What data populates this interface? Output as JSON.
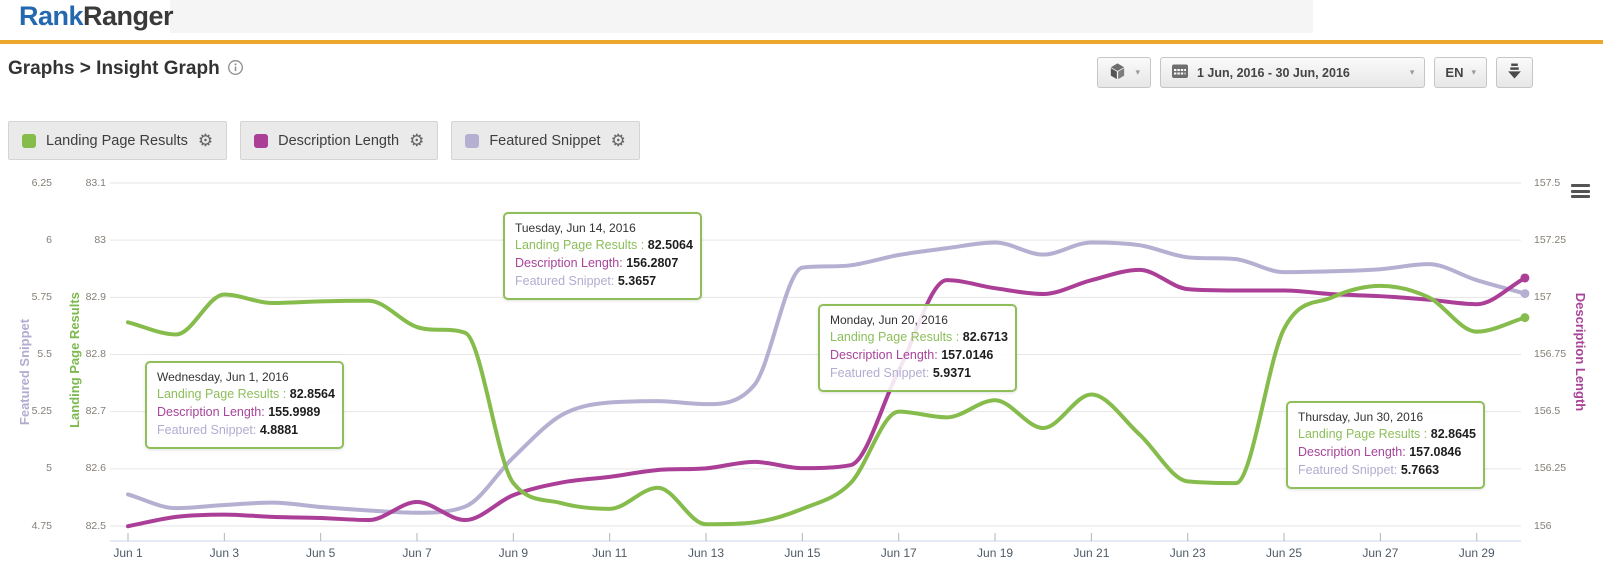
{
  "header": {
    "logo_part1": "Rank",
    "logo_part2": "Ranger"
  },
  "toolbar": {
    "breadcrumb": "Graphs > Insight Graph",
    "date_range": "1 Jun, 2016 - 30 Jun, 2016",
    "language": "EN"
  },
  "legend": {
    "items": [
      {
        "label": "Landing Page Results",
        "color": "#86BC4C"
      },
      {
        "label": "Description Length",
        "color": "#AB3E96"
      },
      {
        "label": "Featured Snippet",
        "color": "#B5AFD1"
      }
    ]
  },
  "tooltip_labels": {
    "landing_page_results": "Landing Page Results :",
    "description_length": "Description Length:",
    "featured_snippet": "Featured Snippet:"
  },
  "tooltips": [
    {
      "date": "Wednesday, Jun 1, 2016",
      "landing_page_results": "82.8564",
      "description_length": "155.9989",
      "featured_snippet": "4.8881"
    },
    {
      "date": "Tuesday, Jun 14, 2016",
      "landing_page_results": "82.5064",
      "description_length": "156.2807",
      "featured_snippet": "5.3657"
    },
    {
      "date": "Monday, Jun 20, 2016",
      "landing_page_results": "82.6713",
      "description_length": "157.0146",
      "featured_snippet": "5.9371"
    },
    {
      "date": "Thursday, Jun 30, 2016",
      "landing_page_results": "82.8645",
      "description_length": "157.0846",
      "featured_snippet": "5.7663"
    }
  ],
  "chart_data": {
    "type": "line",
    "x_unit": "day of June 2016, days 1-30",
    "x_tick_labels": [
      {
        "day": 1,
        "label": "Jun 1"
      },
      {
        "day": 3,
        "label": "Jun 3"
      },
      {
        "day": 5,
        "label": "Jun 5"
      },
      {
        "day": 7,
        "label": "Jun 7"
      },
      {
        "day": 9,
        "label": "Jun 9"
      },
      {
        "day": 11,
        "label": "Jun 11"
      },
      {
        "day": 13,
        "label": "Jun 13"
      },
      {
        "day": 15,
        "label": "Jun 15"
      },
      {
        "day": 17,
        "label": "Jun 17"
      },
      {
        "day": 19,
        "label": "Jun 19"
      },
      {
        "day": 21,
        "label": "Jun 21"
      },
      {
        "day": 23,
        "label": "Jun 23"
      },
      {
        "day": 25,
        "label": "Jun 25"
      },
      {
        "day": 27,
        "label": "Jun 27"
      },
      {
        "day": 29,
        "label": "Jun 29"
      }
    ],
    "axes": {
      "featured_snippet": {
        "title": "Featured Snippet",
        "side": "left-outer",
        "min": 4.75,
        "max": 6.25,
        "ticks": [
          "6.25",
          "6",
          "5.75",
          "5.5",
          "5.25",
          "5",
          "4.75"
        ]
      },
      "landing_page_results": {
        "title": "Landing Page Results",
        "side": "left-inner",
        "min": 82.5,
        "max": 83.1,
        "ticks": [
          "83.1",
          "83",
          "82.9",
          "82.8",
          "82.7",
          "82.6",
          "82.5"
        ]
      },
      "description_length": {
        "title": "Description Length",
        "side": "right",
        "min": 156.0,
        "max": 157.5,
        "ticks": [
          "157.5",
          "157.25",
          "157",
          "156.75",
          "156.5",
          "156.25",
          "156"
        ]
      }
    },
    "grid": true,
    "legend_position": "top-left buttons",
    "series": [
      {
        "name": "Landing Page Results",
        "axis": "landing_page_results",
        "color": "#86BC4C",
        "values": [
          82.8564,
          82.835,
          82.905,
          82.89,
          82.893,
          82.894,
          82.848,
          82.838,
          82.575,
          82.54,
          82.53,
          82.567,
          82.503,
          82.5064,
          82.53,
          82.575,
          82.7,
          82.69,
          82.72,
          82.6713,
          82.73,
          82.66,
          82.578,
          82.575,
          82.845,
          82.9,
          82.92,
          82.9,
          82.84,
          82.8645
        ]
      },
      {
        "name": "Description Length",
        "axis": "description_length",
        "color": "#AB3E96",
        "values": [
          155.9989,
          156.04,
          156.05,
          156.04,
          156.035,
          156.026,
          156.105,
          156.026,
          156.135,
          156.19,
          156.215,
          156.245,
          156.252,
          156.2807,
          156.253,
          156.266,
          156.68,
          157.075,
          157.04,
          157.0146,
          157.075,
          157.12,
          157.036,
          157.03,
          157.03,
          157.014,
          157.005,
          156.99,
          156.97,
          157.0846
        ]
      },
      {
        "name": "Featured Snippet",
        "axis": "featured_snippet",
        "color": "#B5AFD1",
        "values": [
          4.8881,
          4.828,
          4.842,
          4.852,
          4.833,
          4.818,
          4.808,
          4.835,
          5.05,
          5.235,
          5.29,
          5.296,
          5.283,
          5.3657,
          5.88,
          5.89,
          5.935,
          5.965,
          5.99,
          5.9371,
          5.99,
          5.978,
          5.925,
          5.917,
          5.86,
          5.864,
          5.873,
          5.895,
          5.825,
          5.7663
        ]
      }
    ]
  }
}
